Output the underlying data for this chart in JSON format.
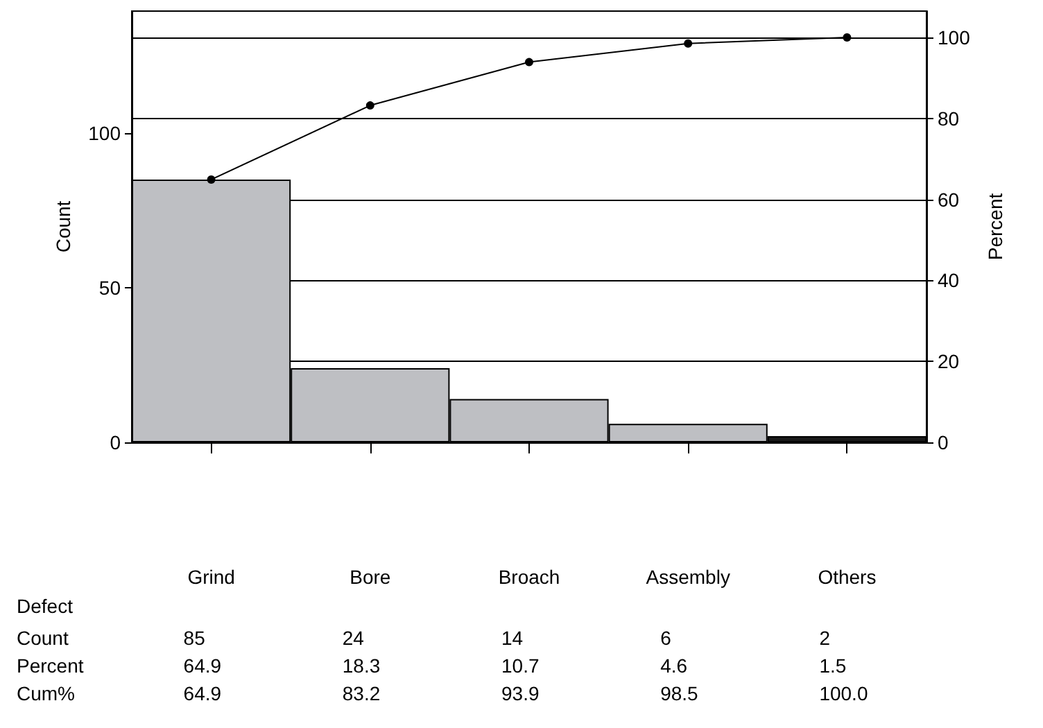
{
  "chart_data": {
    "type": "bar",
    "xlabel": "Defect",
    "ylabel": "Count",
    "y2label": "Percent",
    "categories": [
      "Grind",
      "Bore",
      "Broach",
      "Assembly",
      "Others"
    ],
    "series": [
      {
        "type": "bar",
        "colors": [
          "#bebfc3",
          "#bebfc3",
          "#bebfc3",
          "#bebfc3",
          "#1a1a1a"
        ],
        "values": [
          85,
          24,
          14,
          6,
          2
        ]
      },
      {
        "type": "line",
        "axis": "y2",
        "color": "#000000",
        "values": [
          64.9,
          83.2,
          93.9,
          98.5,
          100.0
        ],
        "value_labels": [
          "64.9",
          "83.2",
          "93.9",
          "98.5",
          "100.0"
        ]
      }
    ],
    "annotations": [
      "Count",
      "Percent",
      "Cum%",
      "64.9",
      "18.3",
      "10.7",
      "4.6",
      "1.5"
    ],
    "ylim": [
      0,
      139.5
    ],
    "yticks": [
      0,
      50,
      100
    ],
    "y2lim": [
      0,
      106.5
    ],
    "y2ticks": [
      0,
      20,
      40,
      60,
      80,
      100
    ],
    "grid": "y2",
    "marker": "circle",
    "line_style": "solid",
    "data_labels": true
  }
}
